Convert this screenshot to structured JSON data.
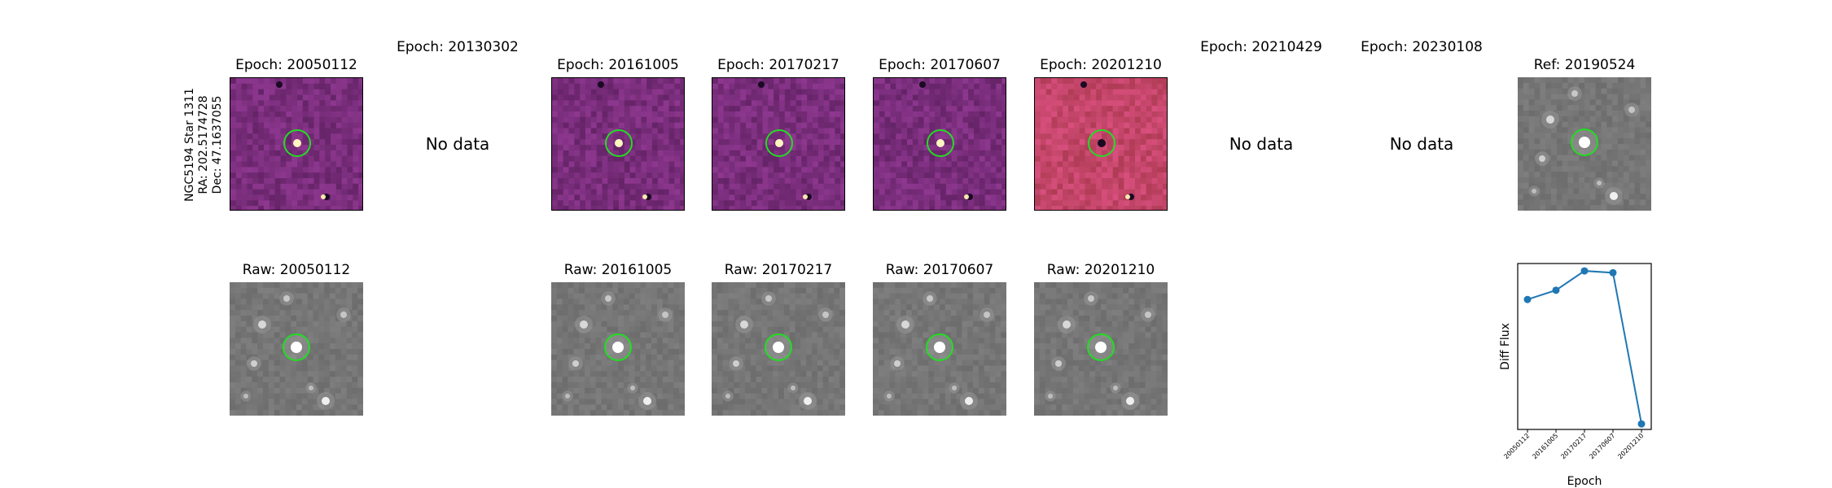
{
  "star_label": [
    "NGC5194 Star 1311",
    "RA: 202.5174728",
    "Dec: 47.1637055"
  ],
  "no_data_text": "No data",
  "diff_panels": [
    {
      "title": "Epoch: 20050112",
      "has_data": true,
      "tint": "purple"
    },
    {
      "title": "Epoch: 20130302",
      "has_data": false
    },
    {
      "title": "Epoch: 20161005",
      "has_data": true,
      "tint": "purple"
    },
    {
      "title": "Epoch: 20170217",
      "has_data": true,
      "tint": "purple"
    },
    {
      "title": "Epoch: 20170607",
      "has_data": true,
      "tint": "purple"
    },
    {
      "title": "Epoch: 20201210",
      "has_data": true,
      "tint": "pink"
    },
    {
      "title": "Epoch: 20210429",
      "has_data": false
    },
    {
      "title": "Epoch: 20230108",
      "has_data": false
    },
    {
      "title": "Ref: 20190524",
      "has_data": true,
      "tint": "gray"
    }
  ],
  "raw_panels": [
    {
      "title": "Raw: 20050112"
    },
    {
      "title": "Raw: 20161005"
    },
    {
      "title": "Raw: 20170217"
    },
    {
      "title": "Raw: 20170607"
    },
    {
      "title": "Raw: 20201210"
    }
  ],
  "colors": {
    "marker_circle": "#22dd22",
    "line": "#1f77b4",
    "purple_bg": "#7a2e7c",
    "pink_bg": "#c4466a",
    "gray_bg": "#7a7a7a"
  },
  "chart_data": {
    "type": "line",
    "categories": [
      "20050112",
      "20161005",
      "20170217",
      "20170607",
      "20201210"
    ],
    "values": [
      0.56,
      0.66,
      0.87,
      0.85,
      -0.79
    ],
    "xlabel": "Epoch",
    "ylabel": "Diff Flux",
    "ylim": [
      -0.85,
      0.95
    ],
    "y_ticks_shown": false,
    "grid": false
  }
}
